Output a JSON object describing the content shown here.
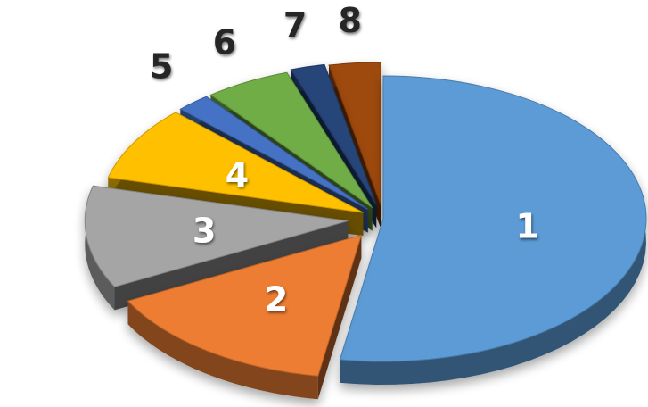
{
  "chart_data": {
    "type": "pie",
    "style": "3d-exploded",
    "categories": [
      "1",
      "2",
      "3",
      "4",
      "5",
      "6",
      "7",
      "8"
    ],
    "values": [
      50,
      14,
      11,
      8,
      2,
      5,
      2,
      3
    ],
    "colors": [
      "#5b9bd5",
      "#ed7d31",
      "#a5a5a5",
      "#ffc000",
      "#4472c4",
      "#70ad47",
      "#264478",
      "#9e480e"
    ],
    "labels": [
      "1",
      "2",
      "3",
      "4",
      "5",
      "6",
      "7",
      "8"
    ],
    "label_colors": {
      "inside": "#ffffff",
      "outside": "#262626"
    },
    "title": "",
    "legend": "none"
  }
}
